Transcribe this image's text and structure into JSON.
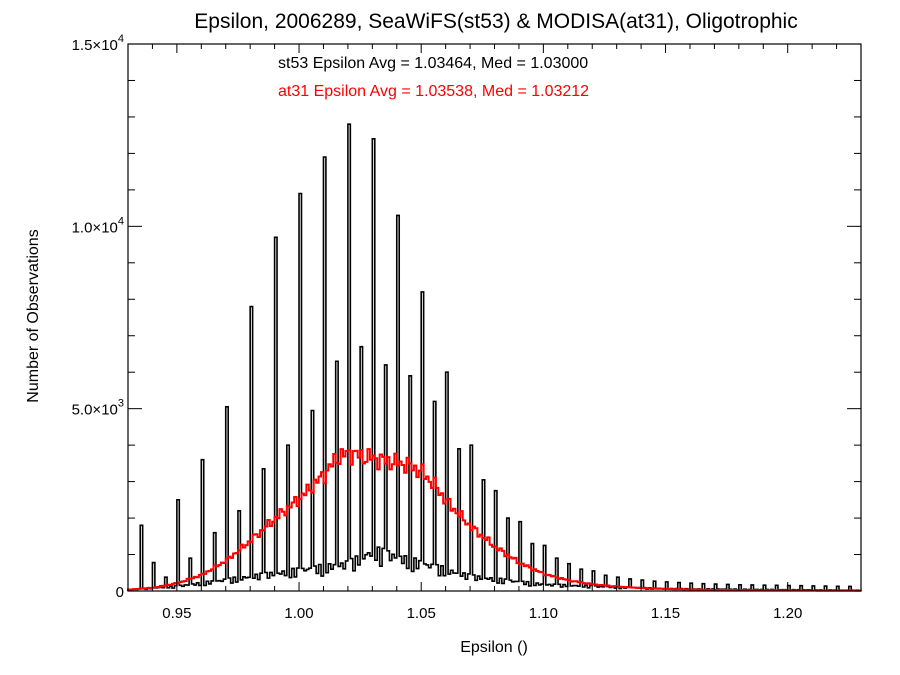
{
  "chart_data": {
    "type": "histogram",
    "title": "Epsilon, 2006289, SeaWiFS(st53) & MODISA(at31), Oligotrophic",
    "xlabel": "Epsilon ()",
    "ylabel": "Number of Observations",
    "xlim": [
      0.93,
      1.23
    ],
    "ylim": [
      0,
      15000
    ],
    "x_ticks": [
      "0.95",
      "1.00",
      "1.05",
      "1.10",
      "1.15",
      "1.20"
    ],
    "x_tick_values": [
      0.95,
      1.0,
      1.05,
      1.1,
      1.15,
      1.2
    ],
    "y_ticks": [
      {
        "value": 0,
        "mantissa": "0",
        "exponent": ""
      },
      {
        "value": 5000,
        "mantissa": "5.0×10",
        "exponent": "3"
      },
      {
        "value": 10000,
        "mantissa": "1.0×10",
        "exponent": "4"
      },
      {
        "value": 15000,
        "mantissa": "1.5×10",
        "exponent": "4"
      }
    ],
    "grid": false,
    "annotations": [
      {
        "text": "st53 Epsilon Avg = 1.03464, Med = 1.03000",
        "color": "#000000"
      },
      {
        "text": "at31 Epsilon Avg = 1.03538, Med = 1.03212",
        "color": "#ff0000"
      }
    ],
    "bin_width": 0.001,
    "series": [
      {
        "color": "#000000",
        "spikes": [
          [
            0.935,
            1800
          ],
          [
            0.94,
            780
          ],
          [
            0.945,
            380
          ],
          [
            0.95,
            2500
          ],
          [
            0.955,
            900
          ],
          [
            0.96,
            3600
          ],
          [
            0.965,
            1600
          ],
          [
            0.97,
            5050
          ],
          [
            0.975,
            2200
          ],
          [
            0.98,
            7800
          ],
          [
            0.985,
            3350
          ],
          [
            0.99,
            9700
          ],
          [
            0.995,
            4000
          ],
          [
            1.0,
            10900
          ],
          [
            1.005,
            4950
          ],
          [
            1.01,
            11900
          ],
          [
            1.015,
            6300
          ],
          [
            1.02,
            12800
          ],
          [
            1.025,
            6700
          ],
          [
            1.03,
            12400
          ],
          [
            1.035,
            6200
          ],
          [
            1.04,
            10300
          ],
          [
            1.045,
            5900
          ],
          [
            1.05,
            8200
          ],
          [
            1.055,
            5200
          ],
          [
            1.06,
            6000
          ],
          [
            1.065,
            3900
          ],
          [
            1.07,
            4000
          ],
          [
            1.075,
            3050
          ],
          [
            1.08,
            2750
          ],
          [
            1.085,
            2000
          ],
          [
            1.09,
            1900
          ],
          [
            1.095,
            1300
          ],
          [
            1.1,
            1250
          ],
          [
            1.105,
            900
          ],
          [
            1.11,
            750
          ],
          [
            1.115,
            600
          ],
          [
            1.12,
            550
          ],
          [
            1.125,
            430
          ],
          [
            1.13,
            380
          ],
          [
            1.135,
            330
          ],
          [
            1.14,
            300
          ],
          [
            1.145,
            270
          ],
          [
            1.15,
            250
          ],
          [
            1.155,
            230
          ],
          [
            1.16,
            215
          ],
          [
            1.165,
            200
          ],
          [
            1.17,
            190
          ],
          [
            1.175,
            180
          ],
          [
            1.18,
            170
          ],
          [
            1.185,
            165
          ],
          [
            1.19,
            160
          ],
          [
            1.195,
            155
          ],
          [
            1.2,
            150
          ],
          [
            1.205,
            145
          ],
          [
            1.21,
            140
          ],
          [
            1.215,
            135
          ],
          [
            1.22,
            130
          ],
          [
            1.225,
            125
          ]
        ],
        "baseline_peaks": [
          [
            0.93,
            40
          ],
          [
            0.95,
            150
          ],
          [
            0.97,
            350
          ],
          [
            1.0,
            650
          ],
          [
            1.02,
            850
          ],
          [
            1.03,
            1250
          ],
          [
            1.05,
            850
          ],
          [
            1.07,
            450
          ],
          [
            1.1,
            200
          ],
          [
            1.15,
            70
          ],
          [
            1.23,
            20
          ]
        ]
      },
      {
        "color": "#ff0000",
        "points": [
          [
            0.93,
            40
          ],
          [
            0.94,
            90
          ],
          [
            0.95,
            220
          ],
          [
            0.96,
            450
          ],
          [
            0.97,
            850
          ],
          [
            0.98,
            1400
          ],
          [
            0.99,
            2000
          ],
          [
            1.0,
            2550
          ],
          [
            1.01,
            3200
          ],
          [
            1.015,
            3650
          ],
          [
            1.02,
            3780
          ],
          [
            1.025,
            3700
          ],
          [
            1.03,
            3640
          ],
          [
            1.035,
            3560
          ],
          [
            1.04,
            3520
          ],
          [
            1.045,
            3430
          ],
          [
            1.05,
            3250
          ],
          [
            1.055,
            2900
          ],
          [
            1.06,
            2450
          ],
          [
            1.07,
            1750
          ],
          [
            1.08,
            1200
          ],
          [
            1.09,
            760
          ],
          [
            1.1,
            460
          ],
          [
            1.11,
            290
          ],
          [
            1.12,
            180
          ],
          [
            1.13,
            120
          ],
          [
            1.14,
            80
          ],
          [
            1.15,
            55
          ],
          [
            1.17,
            30
          ],
          [
            1.2,
            15
          ],
          [
            1.23,
            8
          ]
        ]
      }
    ]
  }
}
